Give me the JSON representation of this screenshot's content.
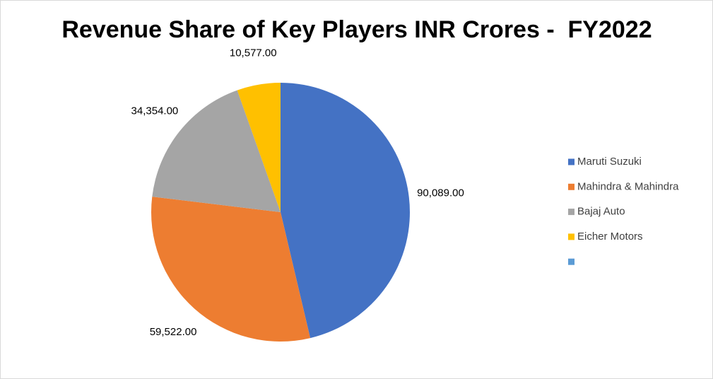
{
  "chart_data": {
    "type": "pie",
    "title": "Revenue Share of Key Players INR Crores -  FY2022",
    "categories": [
      "Maruti Suzuki",
      "Mahindra & Mahindra",
      "Bajaj Auto",
      "Eicher Motors",
      null
    ],
    "values": [
      90089,
      59522,
      34354,
      10577,
      null
    ],
    "value_labels": [
      "90,089.00",
      "59,522.00",
      "34,354.00",
      "10,577.00",
      null
    ],
    "colors": [
      "#4472c4",
      "#ed7d31",
      "#a5a5a5",
      "#ffc000",
      "#5b9bd5"
    ],
    "legend": "right"
  }
}
